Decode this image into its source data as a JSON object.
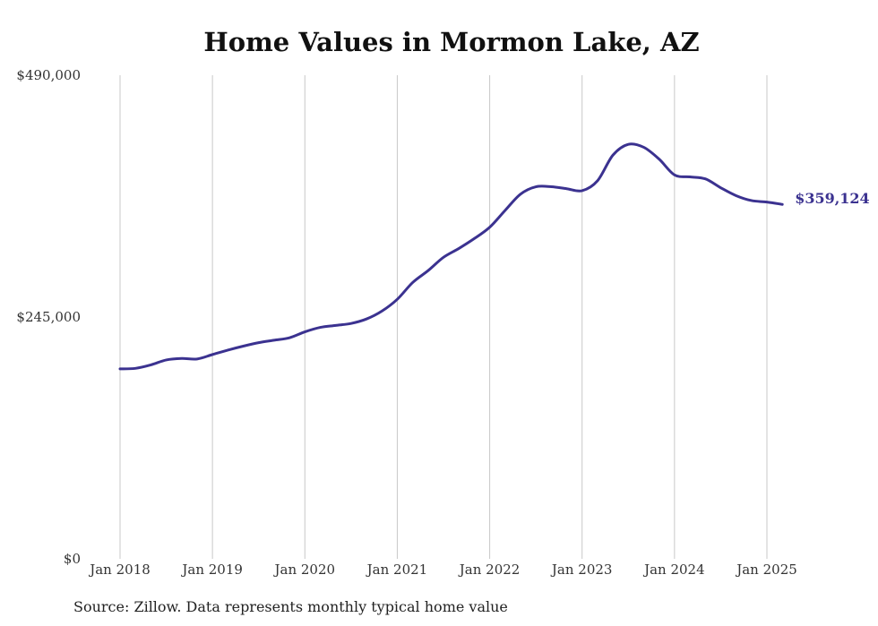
{
  "chart_data": {
    "type": "line",
    "title": "Home Values in Mormon Lake, AZ",
    "xlabel": "",
    "ylabel": "",
    "ylim": [
      0,
      490000
    ],
    "y_ticks": [
      0,
      245000,
      490000
    ],
    "y_tick_labels": [
      "$0",
      "$245,000",
      "$490,000"
    ],
    "x_ticks": [
      "2018-01",
      "2019-01",
      "2020-01",
      "2021-01",
      "2022-01",
      "2023-01",
      "2024-01",
      "2025-01"
    ],
    "x_tick_labels": [
      "Jan 2018",
      "Jan 2019",
      "Jan 2020",
      "Jan 2021",
      "Jan 2022",
      "Jan 2023",
      "Jan 2024",
      "Jan 2025"
    ],
    "grid": "vertical",
    "legend": "none",
    "end_label": "$359,124",
    "series": [
      {
        "color": "#3b3290",
        "x": [
          "2018-01",
          "2018-03",
          "2018-05",
          "2018-07",
          "2018-09",
          "2018-11",
          "2019-01",
          "2019-03",
          "2019-05",
          "2019-07",
          "2019-09",
          "2019-11",
          "2020-01",
          "2020-03",
          "2020-05",
          "2020-07",
          "2020-09",
          "2020-11",
          "2021-01",
          "2021-03",
          "2021-05",
          "2021-07",
          "2021-09",
          "2021-11",
          "2022-01",
          "2022-03",
          "2022-05",
          "2022-07",
          "2022-09",
          "2022-11",
          "2023-01",
          "2023-03",
          "2023-05",
          "2023-07",
          "2023-09",
          "2023-11",
          "2024-01",
          "2024-03",
          "2024-05",
          "2024-07",
          "2024-09",
          "2024-11",
          "2025-01",
          "2025-03"
        ],
        "values": [
          192500,
          193000,
          196500,
          201500,
          203000,
          202500,
          207000,
          211500,
          215500,
          219000,
          221500,
          224000,
          230000,
          234500,
          236500,
          238500,
          243000,
          251000,
          263000,
          280000,
          292000,
          305500,
          314500,
          324500,
          336000,
          353000,
          369500,
          377000,
          377000,
          375000,
          373000,
          383000,
          409000,
          420000,
          417000,
          405000,
          389000,
          387000,
          385000,
          376000,
          368000,
          363000,
          361500,
          359124
        ]
      }
    ]
  },
  "source": "Source: Zillow. Data represents monthly typical home value"
}
